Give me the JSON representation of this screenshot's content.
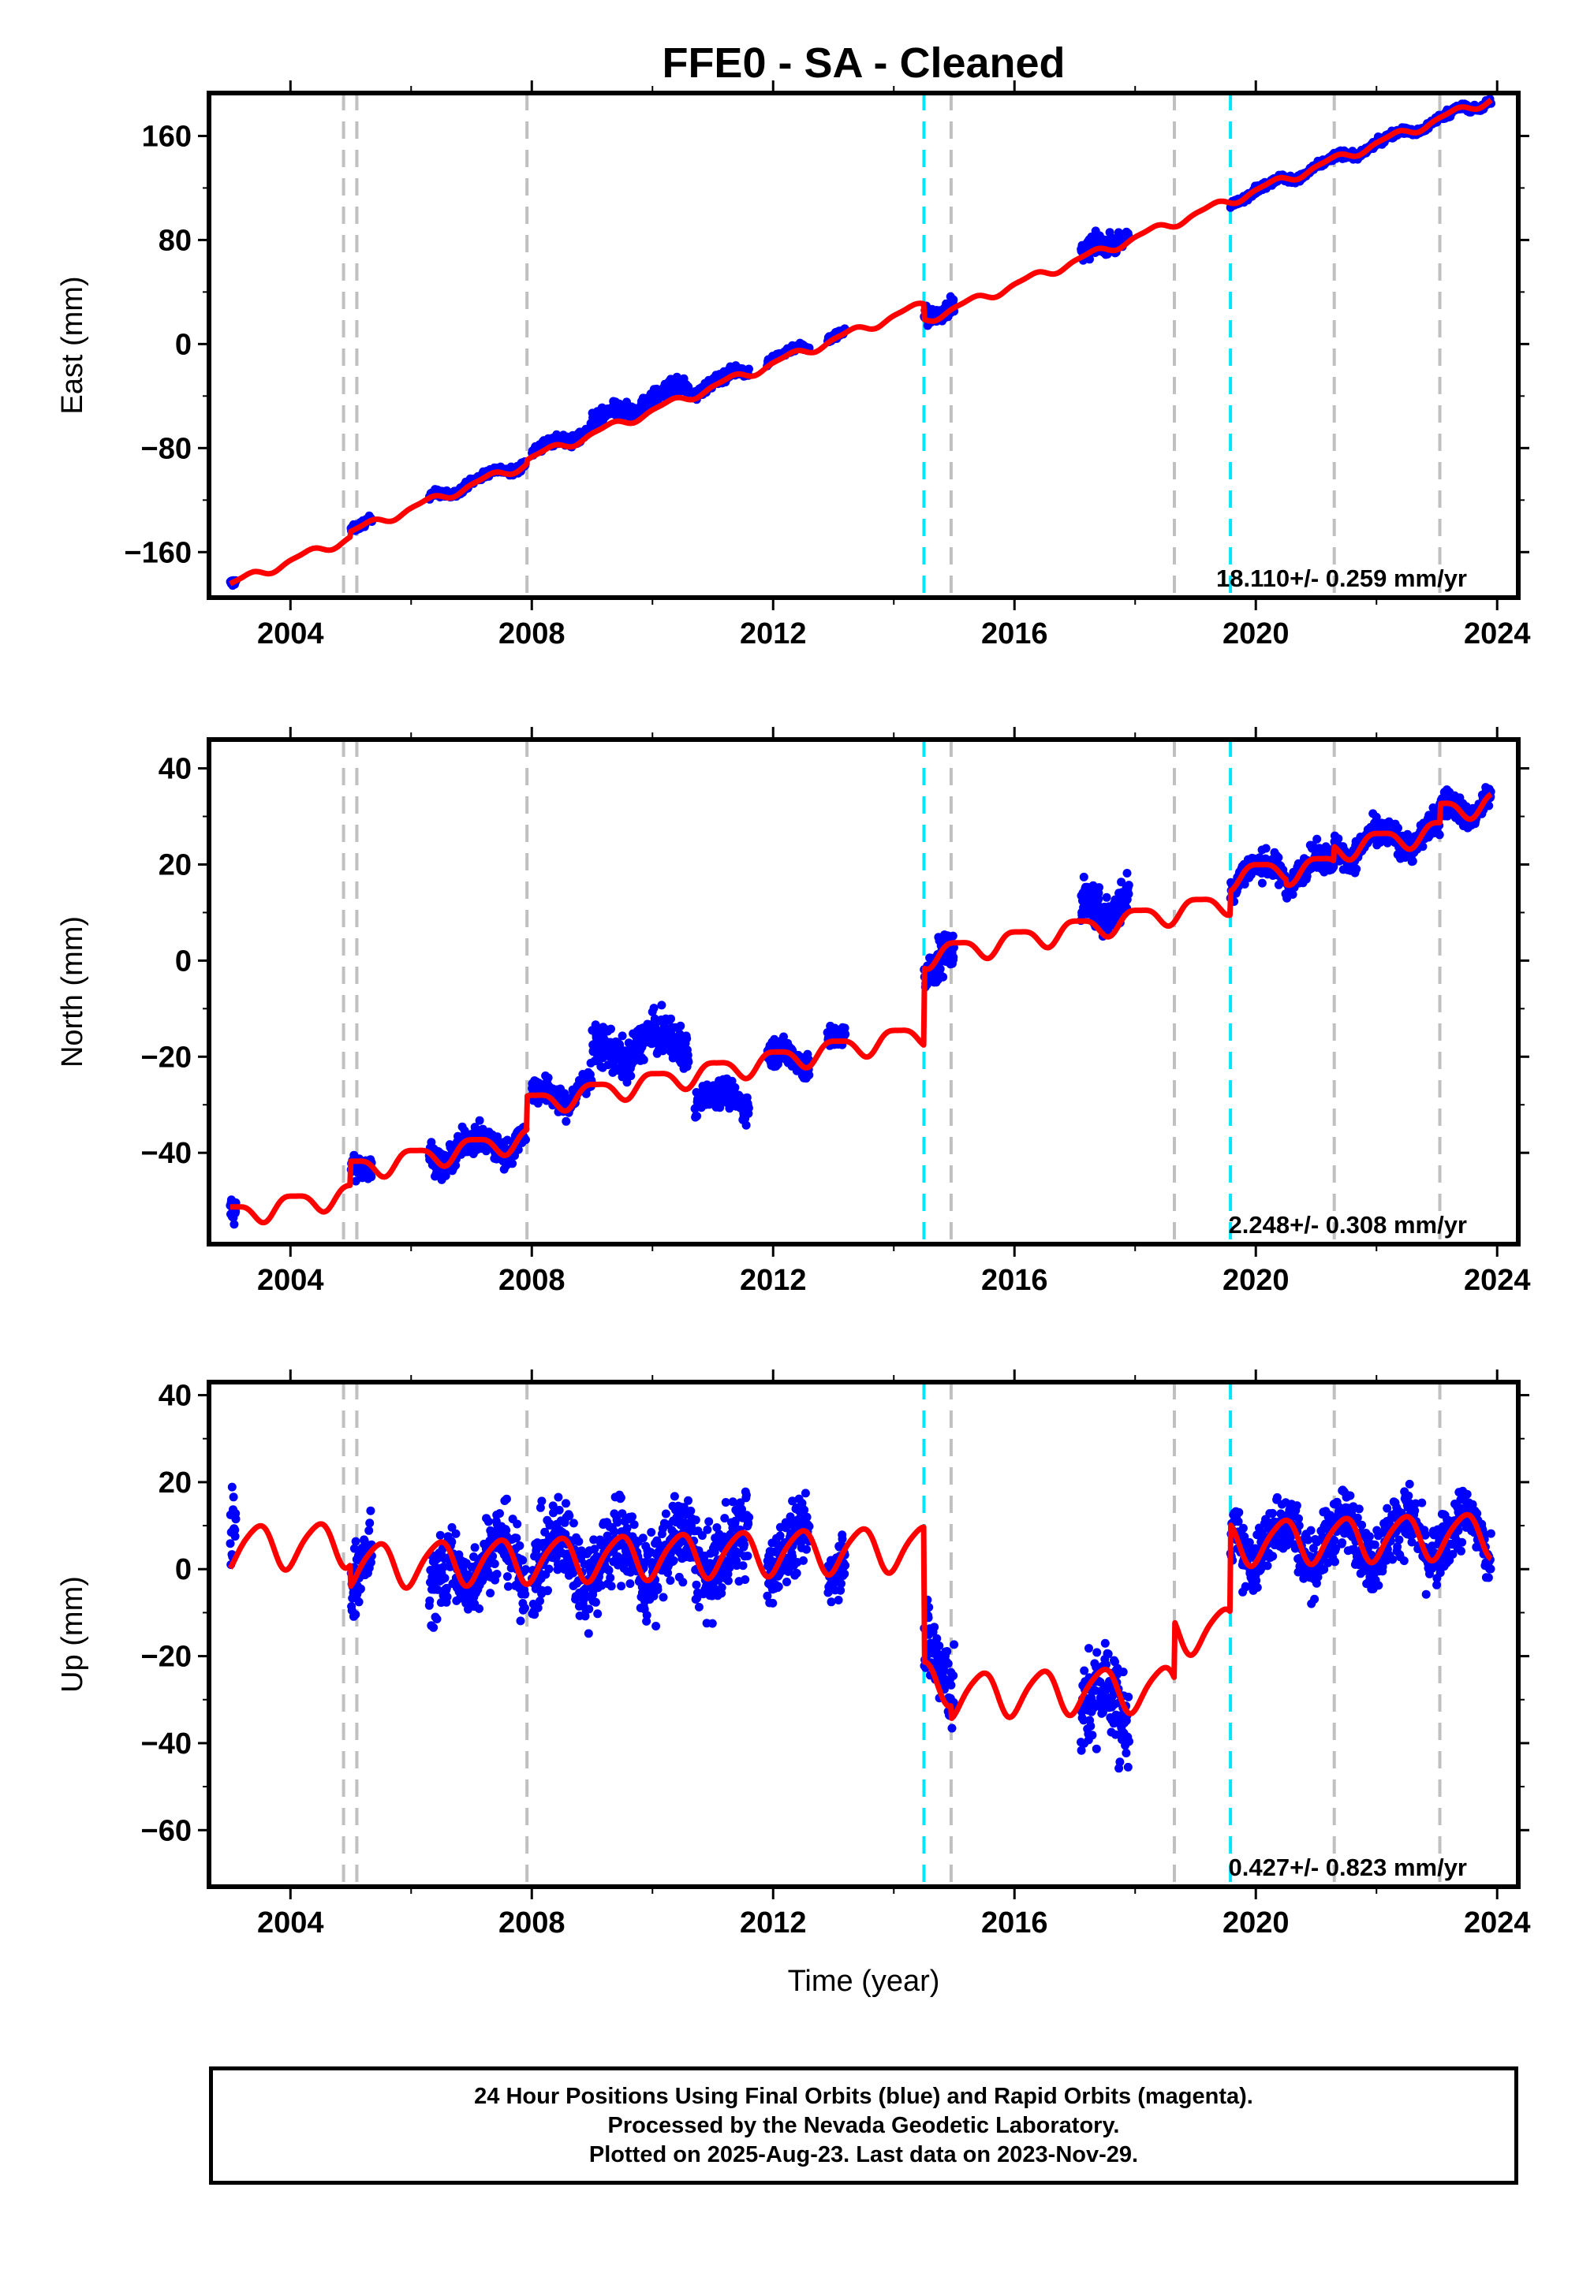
{
  "title": "FFE0  - SA - Cleaned",
  "x_axis_label": "Time (year)",
  "footer": {
    "line1": "24 Hour Positions Using Final Orbits (blue) and Rapid Orbits (magenta).",
    "line2": "Processed by the Nevada Geodetic Laboratory.",
    "line3": "Plotted on 2025-Aug-23. Last data on 2023-Nov-29."
  },
  "colors": {
    "data_points": "#0000ff",
    "model_fit": "#ff0000",
    "equipment_change": "#c0c0c0",
    "earthquake": "#00e5ff"
  },
  "chart_data": [
    {
      "type": "scatter",
      "component": "east",
      "ylabel": "East (mm)",
      "xlim": [
        2002.65,
        2024.35
      ],
      "ylim": [
        -195,
        193
      ],
      "yticks": [
        -160,
        -80,
        0,
        80,
        160
      ],
      "xticks": [
        2004,
        2008,
        2012,
        2016,
        2020,
        2024
      ],
      "rate_text": "18.110+/- 0.259 mm/yr",
      "grid": false,
      "equipment_change_years": [
        2004.88,
        2005.1,
        2007.92,
        2014.95,
        2018.65,
        2021.3,
        2023.05
      ],
      "earthquake_years": [
        2014.5,
        2019.58
      ],
      "model": {
        "t0": 2003.0,
        "intercept": -185,
        "rate": 18.11,
        "annual_amp": 3,
        "annual_phase": 1.0,
        "semi_amp": 1,
        "semi_phase": 0.3,
        "offsets": [
          {
            "year": 2005.0,
            "size": 4
          },
          {
            "year": 2007.92,
            "size": 3
          },
          {
            "year": 2014.5,
            "size": -12
          },
          {
            "year": 2019.58,
            "size": 0
          }
        ]
      },
      "data_segments": [
        {
          "start": 2003.0,
          "end": 2003.1,
          "offset": 0,
          "scatter": 2
        },
        {
          "start": 2005.0,
          "end": 2005.35,
          "offset": 1,
          "scatter": 2
        },
        {
          "start": 2006.3,
          "end": 2007.9,
          "offset": 2,
          "scatter": 2
        },
        {
          "start": 2008.0,
          "end": 2009.0,
          "offset": 4,
          "scatter": 3
        },
        {
          "start": 2009.0,
          "end": 2010.6,
          "offset": 9,
          "scatter": 4
        },
        {
          "start": 2010.7,
          "end": 2011.6,
          "offset": 3,
          "scatter": 3
        },
        {
          "start": 2011.9,
          "end": 2012.6,
          "offset": 3,
          "scatter": 2
        },
        {
          "start": 2012.9,
          "end": 2013.2,
          "offset": 2,
          "scatter": 2
        },
        {
          "start": 2014.5,
          "end": 2015.0,
          "offset": 3,
          "scatter": 5
        },
        {
          "start": 2017.1,
          "end": 2017.9,
          "offset": 4,
          "scatter": 5
        },
        {
          "start": 2019.58,
          "end": 2023.9,
          "offset": 0,
          "scatter": 2
        }
      ]
    },
    {
      "type": "scatter",
      "component": "north",
      "ylabel": "North (mm)",
      "xlim": [
        2002.65,
        2024.35
      ],
      "ylim": [
        -59,
        46
      ],
      "yticks": [
        -40,
        -20,
        0,
        20,
        40
      ],
      "xticks": [
        2004,
        2008,
        2012,
        2016,
        2020,
        2024
      ],
      "rate_text": "2.248+/- 0.308 mm/yr",
      "grid": false,
      "equipment_change_years": [
        2004.88,
        2005.1,
        2007.92,
        2014.95,
        2018.65,
        2021.3,
        2023.05
      ],
      "earthquake_years": [
        2014.5,
        2019.58
      ],
      "model": {
        "t0": 2003.0,
        "intercept": -53,
        "rate": 2.248,
        "annual_amp": 2.2,
        "annual_phase": 0.8,
        "semi_amp": 0.6,
        "semi_phase": 0.2,
        "offsets": [
          {
            "year": 2005.0,
            "size": 5
          },
          {
            "year": 2007.92,
            "size": 7
          },
          {
            "year": 2014.5,
            "size": 16
          },
          {
            "year": 2019.58,
            "size": 5
          },
          {
            "year": 2020.5,
            "size": -1
          },
          {
            "year": 2021.3,
            "size": 3
          },
          {
            "year": 2023.05,
            "size": 4
          }
        ]
      },
      "data_segments": [
        {
          "start": 2003.0,
          "end": 2003.1,
          "offset": -1,
          "scatter": 2
        },
        {
          "start": 2005.0,
          "end": 2005.35,
          "offset": -1,
          "scatter": 2
        },
        {
          "start": 2006.3,
          "end": 2007.9,
          "offset": 0,
          "scatter": 2
        },
        {
          "start": 2008.0,
          "end": 2009.0,
          "offset": 1,
          "scatter": 2
        },
        {
          "start": 2009.0,
          "end": 2010.6,
          "offset": 8,
          "scatter": 3
        },
        {
          "start": 2010.7,
          "end": 2011.6,
          "offset": -6,
          "scatter": 2
        },
        {
          "start": 2011.9,
          "end": 2012.6,
          "offset": 0,
          "scatter": 2
        },
        {
          "start": 2012.9,
          "end": 2013.2,
          "offset": 1,
          "scatter": 1.5
        },
        {
          "start": 2014.5,
          "end": 2015.0,
          "offset": -1,
          "scatter": 3
        },
        {
          "start": 2017.1,
          "end": 2017.9,
          "offset": 4,
          "scatter": 3
        },
        {
          "start": 2019.58,
          "end": 2023.9,
          "offset": 0,
          "scatter": 2
        }
      ]
    },
    {
      "type": "scatter",
      "component": "up",
      "ylabel": "Up (mm)",
      "xlim": [
        2002.65,
        2024.35
      ],
      "ylim": [
        -73,
        43
      ],
      "yticks": [
        -60,
        -40,
        -20,
        0,
        20,
        40
      ],
      "xticks": [
        2004,
        2008,
        2012,
        2016,
        2020,
        2024
      ],
      "rate_text": "0.427+/- 0.823 mm/yr",
      "grid": false,
      "equipment_change_years": [
        2004.88,
        2005.1,
        2007.92,
        2014.95,
        2018.65,
        2021.3,
        2023.05
      ],
      "earthquake_years": [
        2014.5,
        2019.58
      ],
      "model": {
        "t0": 2003.0,
        "intercept": 5,
        "rate": 0.427,
        "annual_amp": 5,
        "annual_phase": 1.2,
        "semi_amp": 0.8,
        "semi_phase": 0.5,
        "offsets": [
          {
            "year": 2005.0,
            "size": -5
          },
          {
            "year": 2014.5,
            "size": -31
          },
          {
            "year": 2014.95,
            "size": -3
          },
          {
            "year": 2018.65,
            "size": 13
          },
          {
            "year": 2019.58,
            "size": 20
          }
        ]
      },
      "data_segments": [
        {
          "start": 2003.0,
          "end": 2003.1,
          "offset": 6,
          "scatter": 8
        },
        {
          "start": 2005.0,
          "end": 2005.35,
          "offset": 0,
          "scatter": 6
        },
        {
          "start": 2006.3,
          "end": 2006.6,
          "offset": -8,
          "scatter": 6
        },
        {
          "start": 2006.6,
          "end": 2007.9,
          "offset": 0,
          "scatter": 6
        },
        {
          "start": 2008.0,
          "end": 2011.6,
          "offset": 0,
          "scatter": 7
        },
        {
          "start": 2011.9,
          "end": 2012.6,
          "offset": 0,
          "scatter": 6
        },
        {
          "start": 2012.9,
          "end": 2013.2,
          "offset": 0,
          "scatter": 5
        },
        {
          "start": 2014.5,
          "end": 2015.0,
          "offset": 5,
          "scatter": 7
        },
        {
          "start": 2017.1,
          "end": 2017.9,
          "offset": -4,
          "scatter": 8
        },
        {
          "start": 2019.58,
          "end": 2023.9,
          "offset": 0,
          "scatter": 5
        }
      ]
    }
  ]
}
